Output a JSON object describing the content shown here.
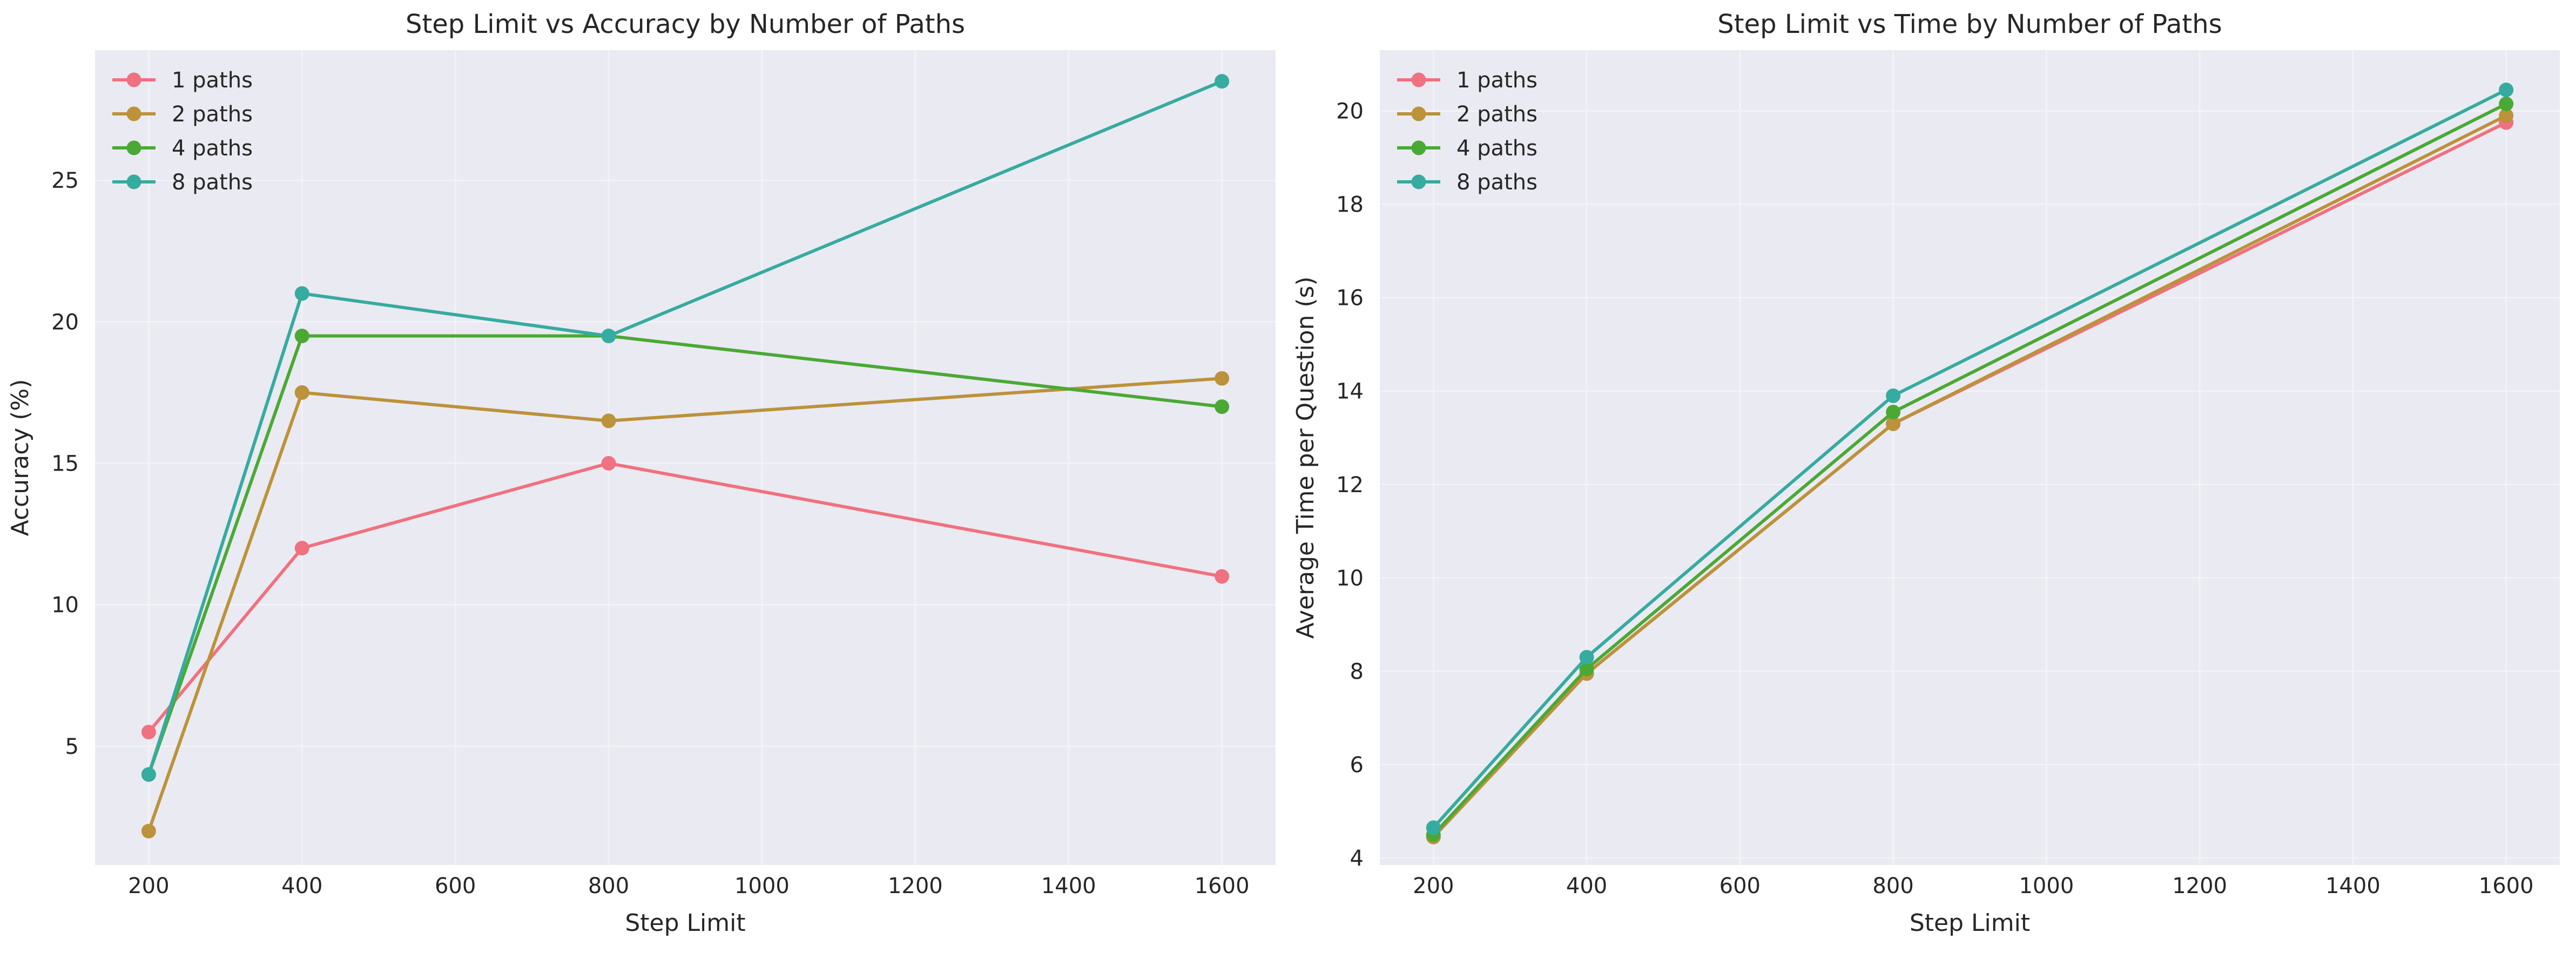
{
  "chart_data": [
    {
      "type": "line",
      "title": "Step Limit vs Accuracy by Number of Paths",
      "xlabel": "Step Limit",
      "ylabel": "Accuracy (%)",
      "x": [
        200,
        400,
        800,
        1600
      ],
      "xlim": [
        130,
        1670
      ],
      "ylim": [
        0.8,
        29.6
      ],
      "xticks": [
        200,
        400,
        600,
        800,
        1000,
        1200,
        1400,
        1600
      ],
      "yticks": [
        5,
        10,
        15,
        20,
        25
      ],
      "grid": true,
      "legend_position": "top-left",
      "series": [
        {
          "name": "1 paths",
          "color": "#f0717f",
          "values": [
            5.5,
            12.0,
            15.0,
            11.0
          ]
        },
        {
          "name": "2 paths",
          "color": "#bc923a",
          "values": [
            2.0,
            17.5,
            16.5,
            18.0
          ]
        },
        {
          "name": "4 paths",
          "color": "#4aa934",
          "values": [
            4.0,
            19.5,
            19.5,
            17.0
          ]
        },
        {
          "name": "8 paths",
          "color": "#36aba0",
          "values": [
            4.0,
            21.0,
            19.5,
            28.5
          ]
        }
      ]
    },
    {
      "type": "line",
      "title": "Step Limit vs Time by Number of Paths",
      "xlabel": "Step Limit",
      "ylabel": "Average Time per Question (s)",
      "x": [
        200,
        400,
        800,
        1600
      ],
      "xlim": [
        130,
        1670
      ],
      "ylim": [
        3.85,
        21.3
      ],
      "xticks": [
        200,
        400,
        600,
        800,
        1000,
        1200,
        1400,
        1600
      ],
      "yticks": [
        4,
        6,
        8,
        10,
        12,
        14,
        16,
        18,
        20
      ],
      "grid": true,
      "legend_position": "top-left",
      "series": [
        {
          "name": "1 paths",
          "color": "#f0717f",
          "values": [
            4.45,
            7.95,
            13.3,
            19.75
          ]
        },
        {
          "name": "2 paths",
          "color": "#bc923a",
          "values": [
            4.45,
            7.95,
            13.3,
            19.9
          ]
        },
        {
          "name": "4 paths",
          "color": "#4aa934",
          "values": [
            4.5,
            8.05,
            13.55,
            20.15
          ]
        },
        {
          "name": "8 paths",
          "color": "#36aba0",
          "values": [
            4.65,
            8.3,
            13.9,
            20.45
          ]
        }
      ]
    }
  ]
}
